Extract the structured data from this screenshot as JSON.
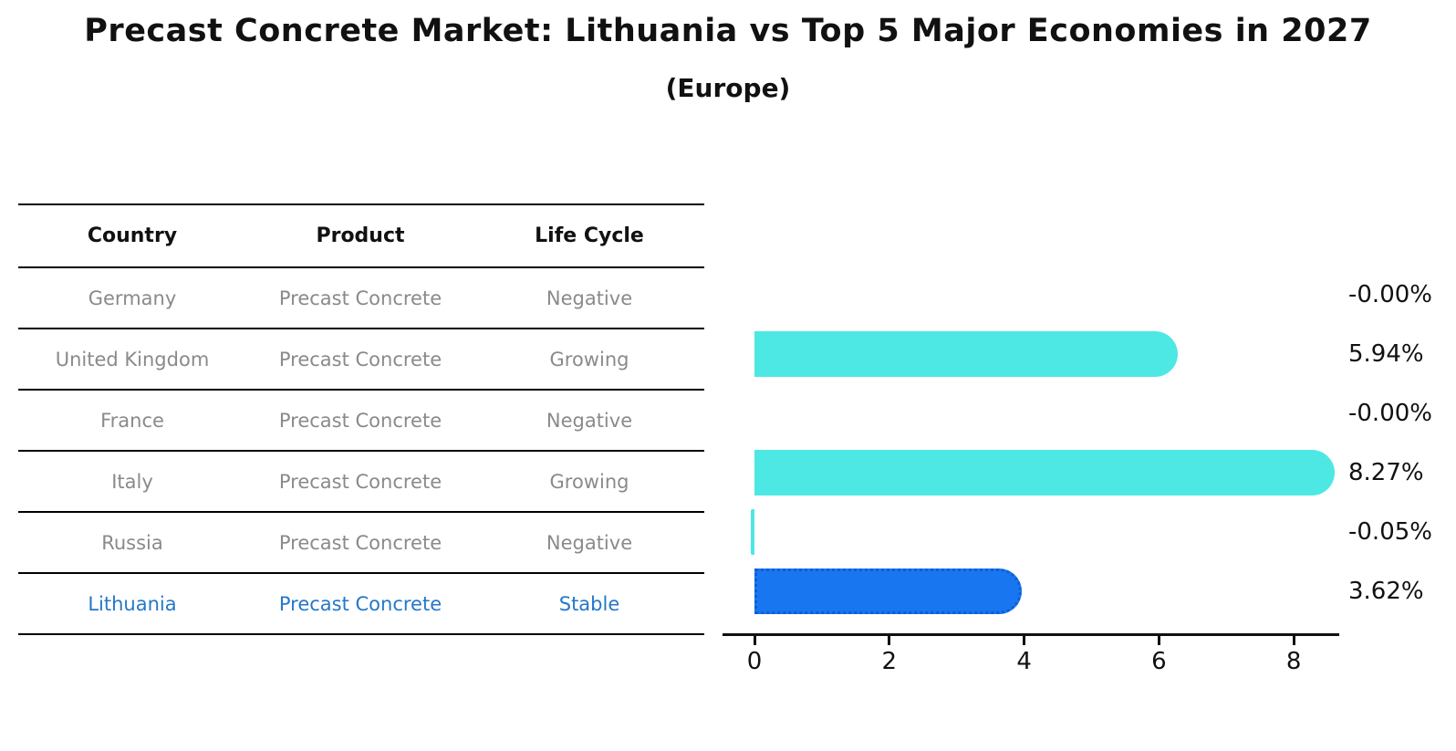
{
  "title": "Precast Concrete Market: Lithuania vs Top 5 Major Economies in 2027",
  "subtitle": "(Europe)",
  "table": {
    "headers": [
      "Country",
      "Product",
      "Life Cycle"
    ],
    "rows": [
      {
        "country": "Germany",
        "product": "Precast Concrete",
        "life_cycle": "Negative",
        "highlighted": false
      },
      {
        "country": "United Kingdom",
        "product": "Precast Concrete",
        "life_cycle": "Growing",
        "highlighted": false
      },
      {
        "country": "France",
        "product": "Precast Concrete",
        "life_cycle": "Negative",
        "highlighted": false
      },
      {
        "country": "Italy",
        "product": "Precast Concrete",
        "life_cycle": "Growing",
        "highlighted": false
      },
      {
        "country": "Russia",
        "product": "Precast Concrete",
        "life_cycle": "Negative",
        "highlighted": false
      },
      {
        "country": "Lithuania",
        "product": "Precast Concrete",
        "life_cycle": "Stable",
        "highlighted": true
      }
    ]
  },
  "chart_data": {
    "type": "bar",
    "orientation": "horizontal",
    "title": "Precast Concrete Market: Lithuania vs Top 5 Major Economies in 2027",
    "subtitle": "(Europe)",
    "categories": [
      "Germany",
      "United Kingdom",
      "France",
      "Italy",
      "Russia",
      "Lithuania"
    ],
    "values": [
      0.0,
      5.94,
      0.0,
      8.27,
      -0.05,
      3.62
    ],
    "value_labels": [
      "-0.00%",
      "5.94%",
      "-0.00%",
      "8.27%",
      "-0.05%",
      "3.62%"
    ],
    "x_ticks": [
      0,
      2,
      4,
      6,
      8
    ],
    "xlim": [
      -0.45,
      8.7
    ],
    "grid": false,
    "legend": false,
    "bar_color": "#4DE8E4",
    "highlight_bar_color": "#1876F0",
    "highlight_border_color": "#0C5ED6",
    "highlight_index": 5
  },
  "colors": {
    "background": "#ffffff",
    "title_text": "#111111",
    "table_header_text": "#111111",
    "table_body_text": "#8a8a8a",
    "highlight_text": "#2478C8",
    "axis": "#111111",
    "value_label_text": "#111111"
  }
}
